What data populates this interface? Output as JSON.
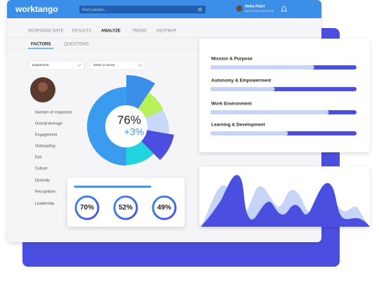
{
  "header": {
    "logo": "worktango",
    "search_placeholder": "Find a person...",
    "user_name": "Neha Patel",
    "user_role": "MARKETING EMPLOYEE"
  },
  "tabs": [
    "RESPONSE RATE",
    "RESULTS",
    "ANALYZE",
    "TREND",
    "HEATMAP"
  ],
  "subtabs": [
    "FACTORS",
    "QUESTIONS"
  ],
  "filters": [
    "Department",
    "Select a survey"
  ],
  "factor_list": [
    "Number of responses",
    "Overall Average",
    "Engagement",
    "Onboarding",
    "Exit",
    "Culture",
    "Diversity",
    "Recognition",
    "Leadership"
  ],
  "donut": {
    "score": "76%",
    "change": "+3%"
  },
  "scores": [
    "70%",
    "52%",
    "49%"
  ],
  "factors": [
    {
      "label": "Mission & Purpose",
      "progress": 71
    },
    {
      "label": "Autonomy & Empowerment",
      "progress": 44
    },
    {
      "label": "Work Environment",
      "progress": 81
    },
    {
      "label": "Learning & Development",
      "progress": 53
    }
  ]
}
